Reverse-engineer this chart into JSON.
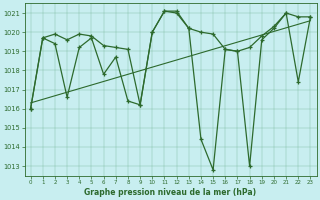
{
  "title": "Graphe pression niveau de la mer (hPa)",
  "bg_color": "#c8eef0",
  "line_color": "#2d6a2d",
  "xlim": [
    -0.5,
    23.5
  ],
  "ylim": [
    1012.5,
    1021.5
  ],
  "yticks": [
    1013,
    1014,
    1015,
    1016,
    1017,
    1018,
    1019,
    1020,
    1021
  ],
  "xticks": [
    0,
    1,
    2,
    3,
    4,
    5,
    6,
    7,
    8,
    9,
    10,
    11,
    12,
    13,
    14,
    15,
    16,
    17,
    18,
    19,
    20,
    21,
    22,
    23
  ],
  "series1": [
    [
      0,
      1016.0
    ],
    [
      1,
      1019.7
    ],
    [
      2,
      1019.9
    ],
    [
      3,
      1019.6
    ],
    [
      4,
      1019.9
    ],
    [
      5,
      1019.8
    ],
    [
      6,
      1019.3
    ],
    [
      7,
      1019.2
    ],
    [
      8,
      1019.1
    ],
    [
      9,
      1016.2
    ],
    [
      10,
      1020.0
    ],
    [
      11,
      1021.1
    ],
    [
      12,
      1021.0
    ],
    [
      13,
      1020.2
    ],
    [
      14,
      1020.0
    ],
    [
      15,
      1019.9
    ],
    [
      16,
      1019.1
    ],
    [
      17,
      1019.0
    ],
    [
      18,
      1019.2
    ],
    [
      19,
      1019.8
    ],
    [
      20,
      1020.3
    ],
    [
      21,
      1021.0
    ],
    [
      22,
      1020.8
    ],
    [
      23,
      1020.8
    ]
  ],
  "series2": [
    [
      0,
      1016.0
    ],
    [
      1,
      1019.7
    ],
    [
      2,
      1019.4
    ],
    [
      3,
      1016.6
    ],
    [
      4,
      1019.2
    ],
    [
      5,
      1019.7
    ],
    [
      6,
      1017.8
    ],
    [
      7,
      1018.7
    ],
    [
      8,
      1016.4
    ],
    [
      9,
      1016.2
    ],
    [
      10,
      1020.0
    ],
    [
      11,
      1021.1
    ],
    [
      12,
      1021.1
    ],
    [
      13,
      1020.2
    ],
    [
      14,
      1014.4
    ],
    [
      15,
      1012.8
    ],
    [
      16,
      1019.1
    ],
    [
      17,
      1019.0
    ],
    [
      18,
      1013.0
    ],
    [
      19,
      1019.6
    ],
    [
      20,
      1020.2
    ],
    [
      21,
      1021.0
    ],
    [
      22,
      1017.4
    ],
    [
      23,
      1020.8
    ]
  ],
  "trend_line": [
    [
      0,
      1016.3
    ],
    [
      23,
      1020.6
    ]
  ]
}
